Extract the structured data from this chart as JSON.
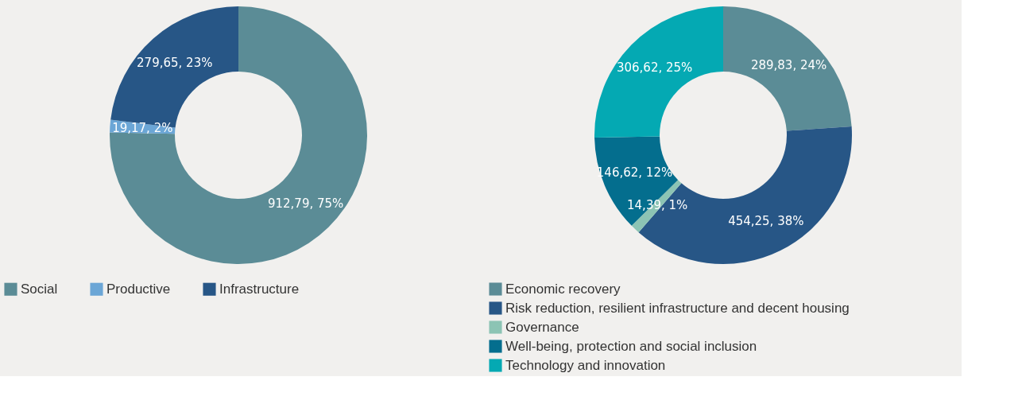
{
  "chart_data": [
    {
      "type": "donut",
      "categories": [
        "Social",
        "Productive",
        "Infrastructure"
      ],
      "values": [
        912.79,
        19.17,
        279.65
      ],
      "colors": [
        "#5b8c96",
        "#6ba6d6",
        "#275686"
      ],
      "value_labels": [
        "912,79, 75%",
        "19,17, 2%",
        "279,65, 23%"
      ],
      "legend": "bottom"
    },
    {
      "type": "donut",
      "categories": [
        "Economic recovery",
        "Risk reduction, resilient infrastructure and decent housing",
        "Governance",
        "Well-being, protection and social inclusion",
        "Technology and innovation"
      ],
      "values": [
        289.83,
        454.25,
        14.39,
        146.62,
        306.62
      ],
      "colors": [
        "#5b8c96",
        "#275686",
        "#8cc4b4",
        "#046e8e",
        "#04a9b3"
      ],
      "value_labels": [
        "289,83, 24%",
        "454,25, 38%",
        "14,39, 1%",
        "146,62, 12%",
        "306,62, 25%"
      ],
      "legend": "bottom"
    }
  ]
}
